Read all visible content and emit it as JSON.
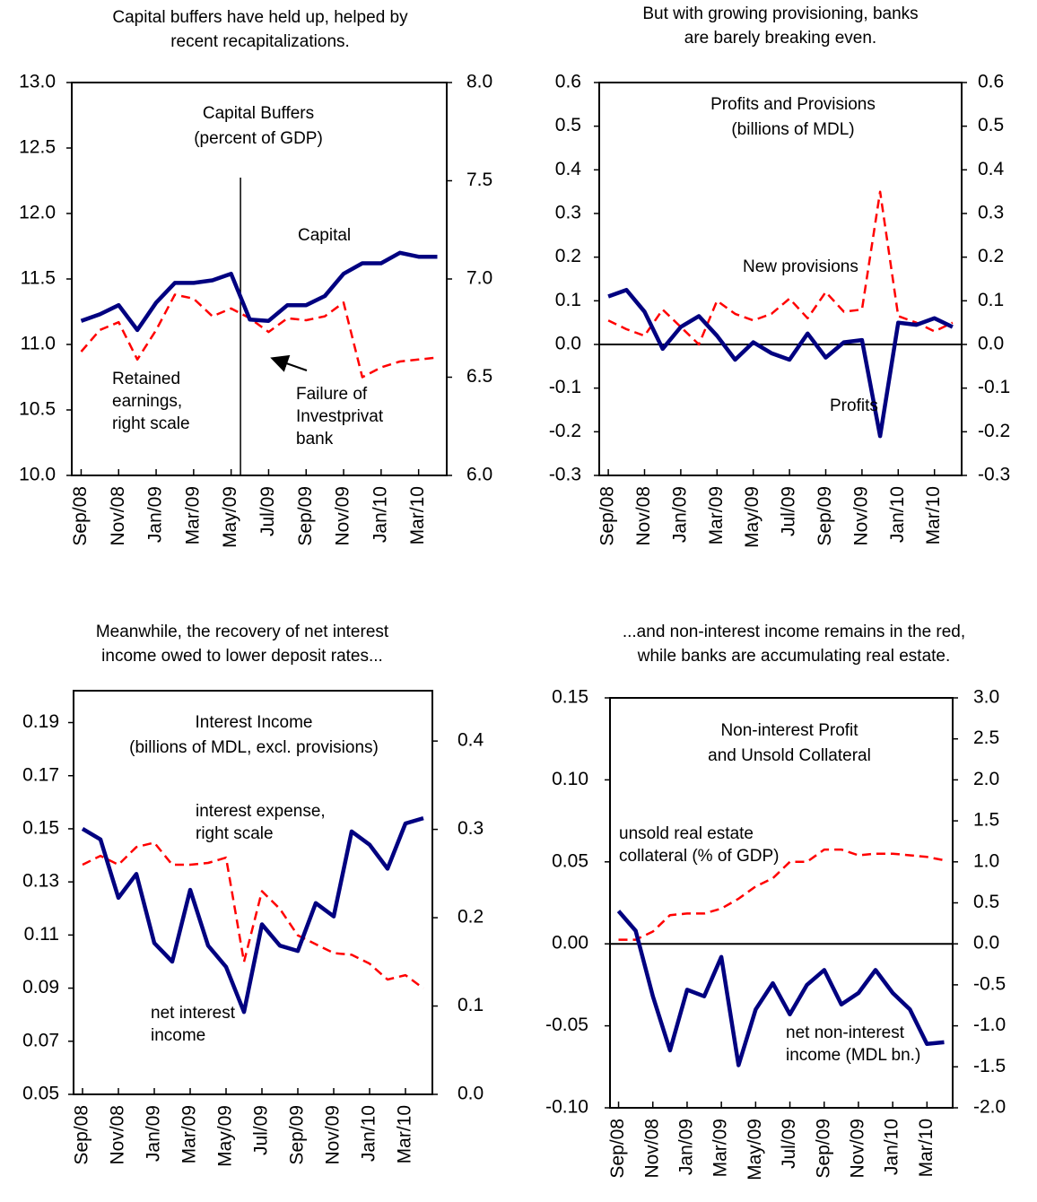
{
  "chart_data": [
    {
      "type": "line",
      "heading": [
        "Capital buffers have held up, helped by",
        "recent recapitalizations."
      ],
      "title": [
        "Capital Buffers",
        "(percent of GDP)"
      ],
      "categories": [
        "Sep/08",
        null,
        "Nov/08",
        null,
        "Jan/09",
        null,
        "Mar/09",
        null,
        "May/09",
        null,
        "Jul/09",
        null,
        "Sep/09",
        null,
        "Nov/09",
        null,
        "Jan/10",
        null,
        "Mar/10",
        null
      ],
      "series": [
        {
          "name": "Capital",
          "color": "#000080",
          "axis": "y",
          "values": [
            11.18,
            11.23,
            11.3,
            11.11,
            11.32,
            11.47,
            11.47,
            11.49,
            11.54,
            11.19,
            11.18,
            11.3,
            11.3,
            11.37,
            11.54,
            11.62,
            11.62,
            11.7,
            11.67,
            11.67
          ]
        },
        {
          "name": "Retained earnings",
          "color": "#ff0000",
          "axis": "y2",
          "values": [
            6.63,
            6.74,
            6.78,
            6.59,
            6.74,
            6.92,
            6.9,
            6.81,
            6.85,
            6.8,
            6.73,
            6.8,
            6.79,
            6.81,
            6.88,
            6.5,
            6.55,
            6.58,
            6.59,
            6.6
          ]
        }
      ],
      "annotations": [
        {
          "lines": [
            "Capital"
          ]
        },
        {
          "lines": [
            "Retained",
            "earnings,",
            "right scale"
          ]
        },
        {
          "lines": [
            "Failure of",
            "Investprivat",
            "bank"
          ]
        }
      ],
      "ylim": [
        10,
        13
      ],
      "yticks": [
        {
          "value": 10,
          "label": "10.0"
        },
        10.5,
        {
          "value": 11,
          "label": "11.0"
        },
        11.5,
        {
          "value": 12,
          "label": "12.0"
        },
        12.5,
        {
          "value": 13,
          "label": "13.0"
        }
      ],
      "y2lim": [
        6,
        8
      ],
      "y2ticks": [
        {
          "value": 6,
          "label": "6.0"
        },
        6.5,
        {
          "value": 7,
          "label": "7.0"
        },
        7.5,
        {
          "value": 8,
          "label": "8.0"
        }
      ],
      "zero_line": false
    },
    {
      "type": "line",
      "heading": [
        "But with growing provisioning, banks",
        "are barely breaking even."
      ],
      "title": [
        "Profits and Provisions",
        "(billions of MDL)"
      ],
      "categories": [
        "Sep/08",
        null,
        "Nov/08",
        null,
        "Jan/09",
        null,
        "Mar/09",
        null,
        "May/09",
        null,
        "Jul/09",
        null,
        "Sep/09",
        null,
        "Nov/09",
        null,
        "Jan/10",
        null,
        "Mar/10",
        null
      ],
      "series": [
        {
          "name": "Profits",
          "color": "#000080",
          "axis": "y",
          "values": [
            0.11,
            0.125,
            0.075,
            -0.01,
            0.04,
            0.065,
            0.02,
            -0.035,
            0.005,
            -0.02,
            -0.035,
            0.025,
            -0.03,
            0.005,
            0.01,
            -0.21,
            0.05,
            0.045,
            0.06,
            0.04
          ]
        },
        {
          "name": "New provisions",
          "color": "#ff0000",
          "axis": "y",
          "values": [
            0.055,
            0.035,
            0.02,
            0.08,
            0.04,
            0.0,
            0.1,
            0.07,
            0.055,
            0.07,
            0.105,
            0.06,
            0.12,
            0.075,
            0.08,
            0.35,
            0.065,
            0.05,
            0.03,
            0.05
          ]
        }
      ],
      "annotations": [
        {
          "lines": [
            "New provisions"
          ]
        },
        {
          "lines": [
            "Profits"
          ]
        }
      ],
      "ylim": [
        -0.3,
        0.6
      ],
      "yticks": [
        -0.3,
        -0.2,
        -0.1,
        {
          "value": 0,
          "label": "0.0"
        },
        0.1,
        0.2,
        0.3,
        0.4,
        0.5,
        0.6
      ],
      "y2lim": [
        -0.3,
        0.6
      ],
      "y2ticks": [
        -0.3,
        -0.2,
        -0.1,
        {
          "value": 0,
          "label": "0.0"
        },
        0.1,
        0.2,
        0.3,
        0.4,
        0.5,
        0.6
      ],
      "zero_line": true
    },
    {
      "type": "line",
      "heading": [
        "Meanwhile, the recovery of net interest",
        "income owed to lower deposit rates..."
      ],
      "title": [
        "Interest Income",
        "(billions of MDL, excl. provisions)"
      ],
      "categories": [
        "Sep/08",
        null,
        "Nov/08",
        null,
        "Jan/09",
        null,
        "Mar/09",
        null,
        "May/09",
        null,
        "Jul/09",
        null,
        "Sep/09",
        null,
        "Nov/09",
        null,
        "Jan/10",
        null,
        "Mar/10",
        null
      ],
      "series": [
        {
          "name": "net interest income",
          "color": "#000080",
          "axis": "y",
          "values": [
            0.15,
            0.146,
            0.124,
            0.133,
            0.107,
            0.1,
            0.127,
            0.106,
            0.098,
            0.081,
            0.114,
            0.106,
            0.104,
            0.122,
            0.117,
            0.149,
            0.144,
            0.135,
            0.152,
            0.154
          ]
        },
        {
          "name": "interest expense",
          "color": "#ff0000",
          "axis": "y2",
          "values": [
            0.26,
            0.27,
            0.26,
            0.28,
            0.285,
            0.26,
            0.26,
            0.262,
            0.268,
            0.15,
            0.23,
            0.21,
            0.18,
            0.17,
            0.16,
            0.158,
            0.148,
            0.13,
            0.135,
            0.12
          ]
        }
      ],
      "annotations": [
        {
          "lines": [
            "interest expense,",
            "right scale"
          ]
        },
        {
          "lines": [
            "net interest",
            "income"
          ]
        }
      ],
      "ylim": [
        0.05,
        0.202
      ],
      "yticks": [
        0.05,
        0.07,
        0.09,
        0.11,
        0.13,
        0.15,
        0.17,
        0.19
      ],
      "y2lim": [
        0,
        0.457
      ],
      "y2ticks": [
        {
          "value": 0,
          "label": "0.0"
        },
        0.1,
        0.2,
        0.3,
        0.4
      ],
      "zero_line": false
    },
    {
      "type": "line",
      "heading": [
        "...and non-interest income remains in the red,",
        "while banks are accumulating real estate."
      ],
      "title": [
        "Non-interest Profit",
        "and Unsold Collateral"
      ],
      "categories": [
        "Sep/08",
        null,
        "Nov/08",
        null,
        "Jan/09",
        null,
        "Mar/09",
        null,
        "May/09",
        null,
        "Jul/09",
        null,
        "Sep/09",
        null,
        "Nov/09",
        null,
        "Jan/10",
        null,
        "Mar/10",
        null
      ],
      "series": [
        {
          "name": "net non-interest income",
          "color": "#000080",
          "axis": "y",
          "values": [
            0.02,
            0.008,
            -0.032,
            -0.065,
            -0.028,
            -0.032,
            -0.008,
            -0.074,
            -0.04,
            -0.024,
            -0.043,
            -0.025,
            -0.016,
            -0.037,
            -0.03,
            -0.016,
            -0.03,
            -0.04,
            -0.061,
            -0.06
          ]
        },
        {
          "name": "unsold real estate collateral",
          "color": "#ff0000",
          "axis": "y2",
          "values": [
            0.05,
            0.05,
            0.15,
            0.35,
            0.37,
            0.37,
            0.43,
            0.55,
            0.7,
            0.8,
            1.0,
            1.0,
            1.15,
            1.15,
            1.08,
            1.1,
            1.1,
            1.08,
            1.06,
            1.02
          ]
        }
      ],
      "annotations": [
        {
          "lines": [
            "unsold real estate",
            "collateral (% of GDP)"
          ]
        },
        {
          "lines": [
            "net non-interest",
            "income (MDL bn.)"
          ]
        }
      ],
      "ylim": [
        -0.1,
        0.15
      ],
      "yticks": [
        {
          "value": -0.1,
          "label": "-0.10"
        },
        -0.05,
        {
          "value": 0,
          "label": "0.00"
        },
        0.05,
        {
          "value": 0.1,
          "label": "0.10"
        },
        0.15
      ],
      "y2lim": [
        -2,
        3
      ],
      "y2ticks": [
        {
          "value": -2,
          "label": "-2.0"
        },
        -1.5,
        {
          "value": -1,
          "label": "-1.0"
        },
        -0.5,
        {
          "value": 0,
          "label": "0.0"
        },
        0.5,
        {
          "value": 1,
          "label": "1.0"
        },
        1.5,
        {
          "value": 2,
          "label": "2.0"
        },
        2.5,
        {
          "value": 3,
          "label": "3.0"
        }
      ],
      "zero_line": true
    }
  ]
}
